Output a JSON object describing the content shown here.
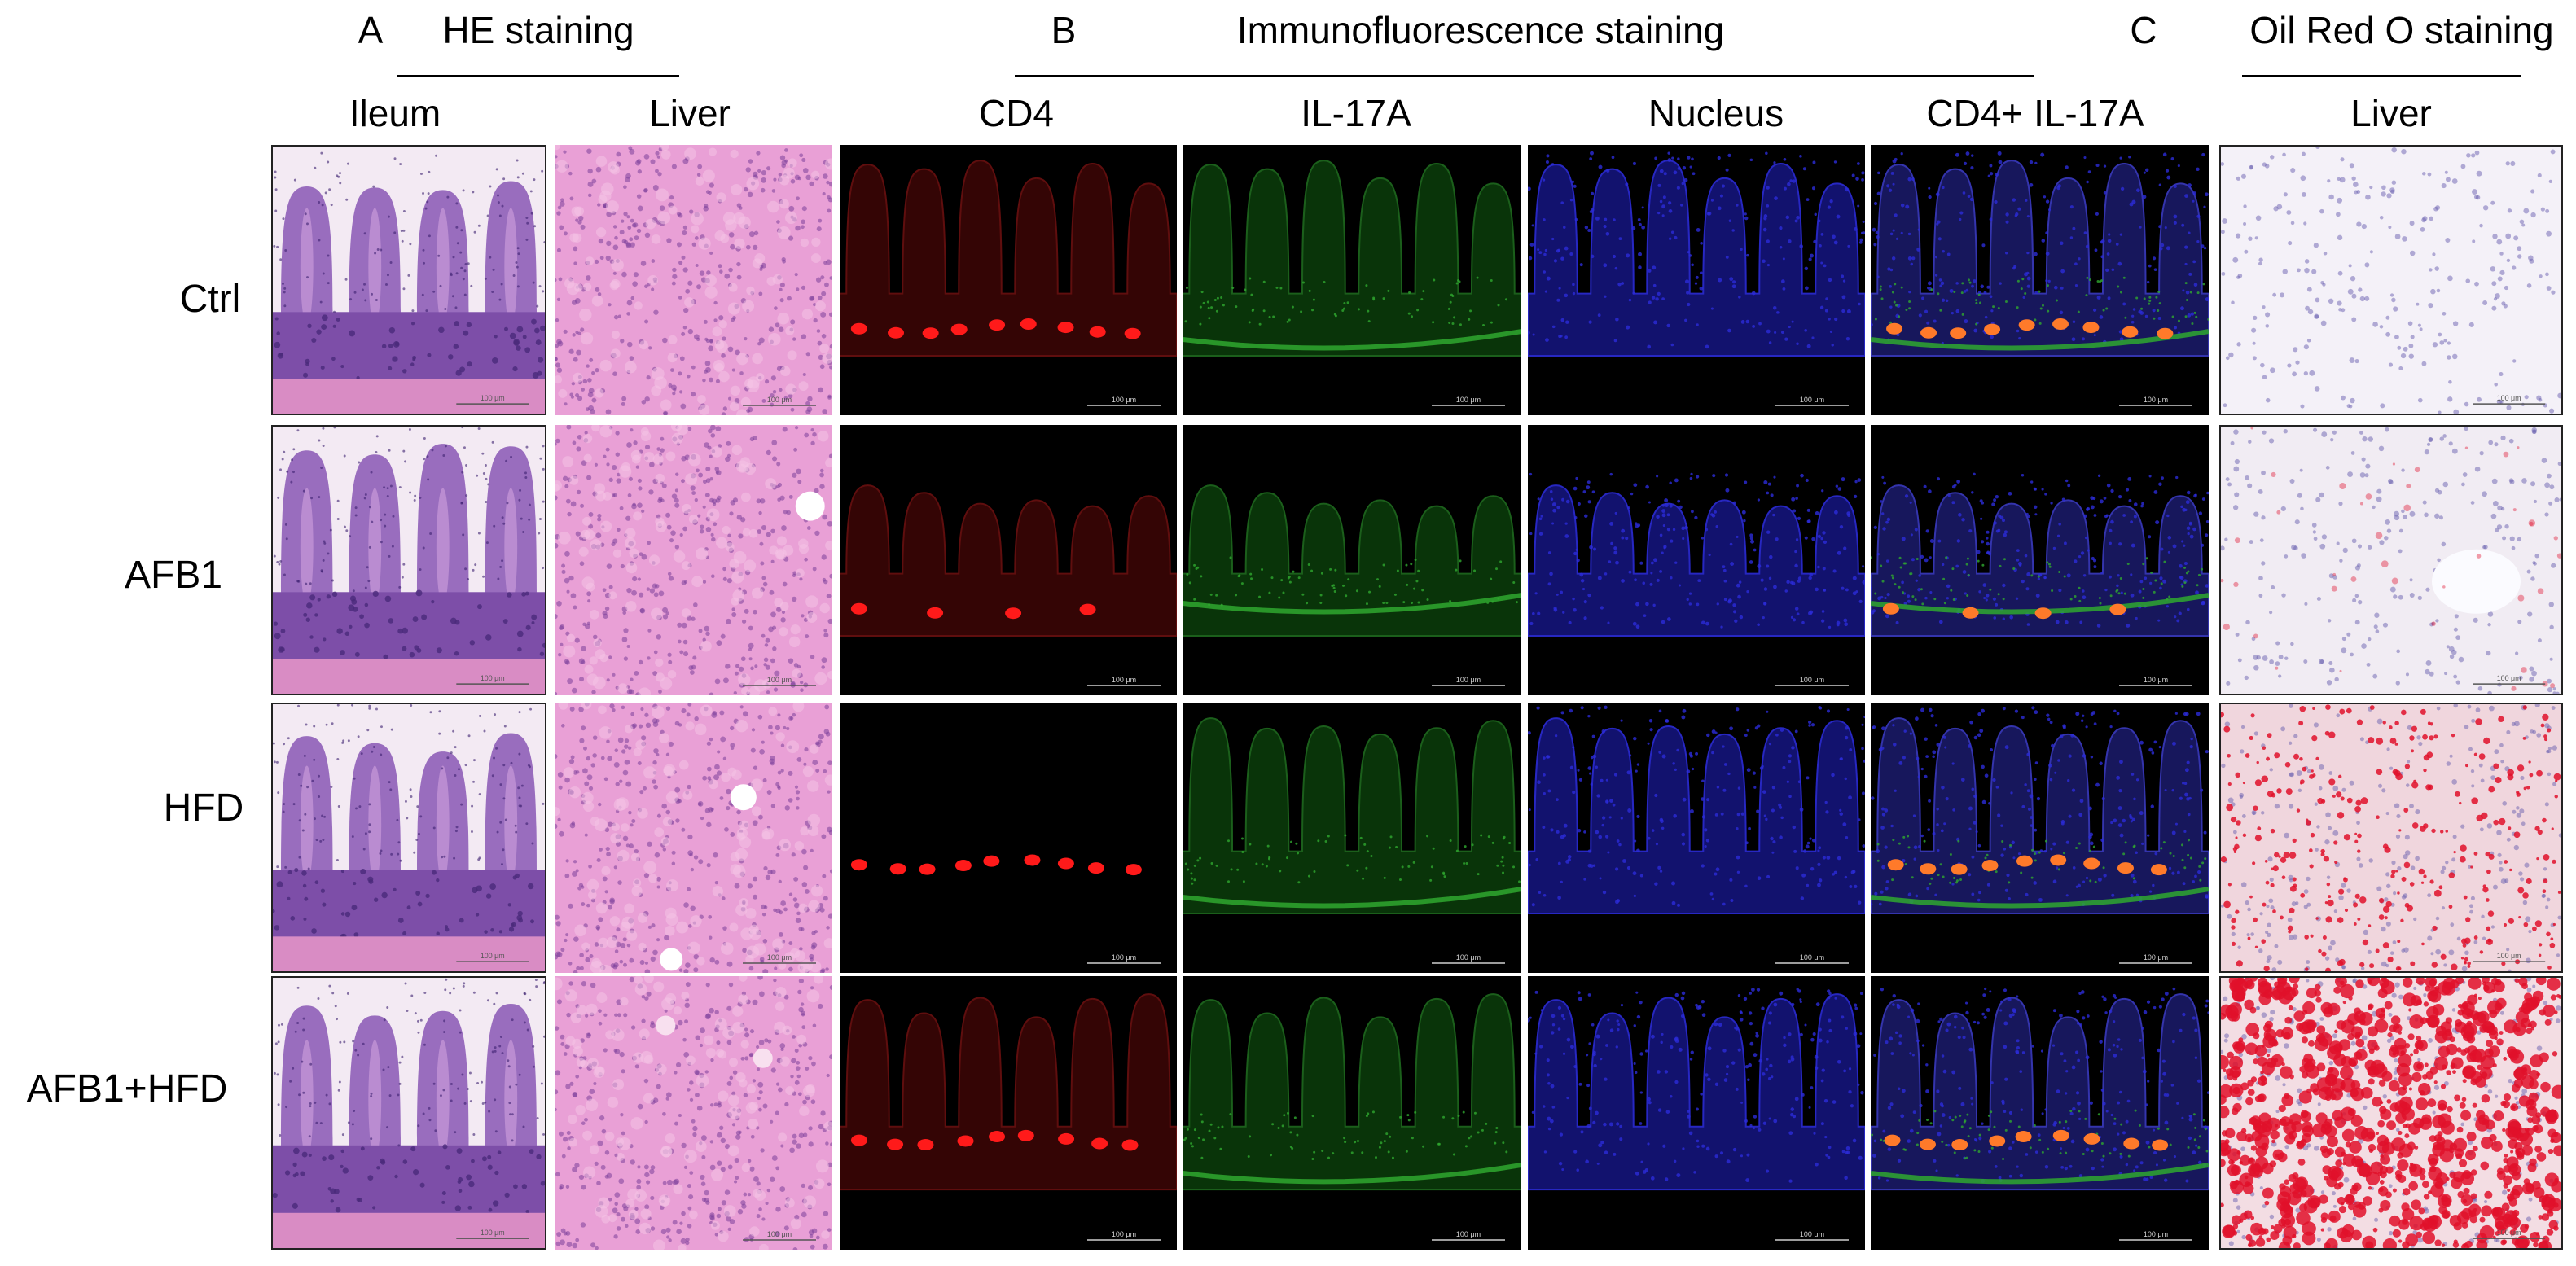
{
  "sections": {
    "a": {
      "letter": "A",
      "title": "HE staining"
    },
    "b": {
      "letter": "B",
      "title": "Immunofluorescence staining"
    },
    "c": {
      "letter": "C",
      "title": "Oil Red O staining"
    }
  },
  "columns": [
    "Ileum",
    "Liver",
    "CD4",
    "IL-17A",
    "Nucleus",
    "CD4+ IL-17A",
    "Liver"
  ],
  "rows": [
    "Ctrl",
    "AFB1",
    "HFD",
    "AFB1+HFD"
  ],
  "scale_bar": "100 μm",
  "colors": {
    "he_ileum_bg": "#f3eaf3",
    "he_ileum_tissue": "#8f5fb8",
    "he_liver": "#e9a0d6",
    "cd4": "#ff1a1a",
    "il17a": "#2fa82f",
    "nucleus": "#2c2cd8",
    "oil_red_bg": "#f2eef6",
    "oil_red_droplet": "#e0102a"
  }
}
